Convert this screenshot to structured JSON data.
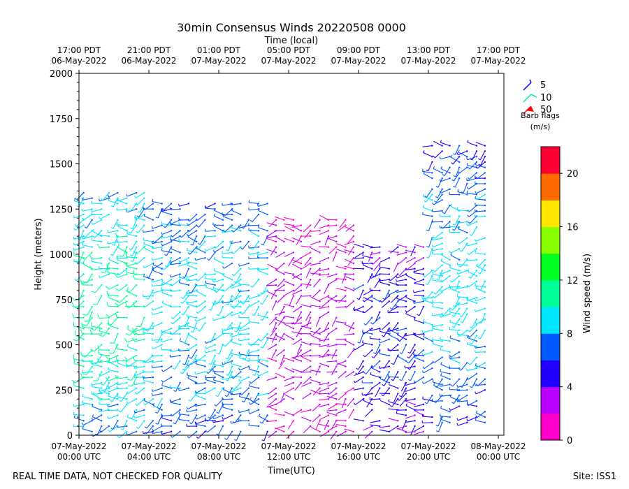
{
  "chart_data": {
    "type": "wind-barb profile",
    "title": "30min Consensus Winds 20220508 0000",
    "top_axis_label": "Time (local)",
    "top_ticks": [
      {
        "h": 0,
        "line1": "17:00 PDT",
        "line2": "06-May-2022"
      },
      {
        "h": 4,
        "line1": "21:00 PDT",
        "line2": "06-May-2022"
      },
      {
        "h": 8,
        "line1": "01:00 PDT",
        "line2": "07-May-2022"
      },
      {
        "h": 12,
        "line1": "05:00 PDT",
        "line2": "07-May-2022"
      },
      {
        "h": 16,
        "line1": "09:00 PDT",
        "line2": "07-May-2022"
      },
      {
        "h": 20,
        "line1": "13:00 PDT",
        "line2": "07-May-2022"
      },
      {
        "h": 24,
        "line1": "17:00 PDT",
        "line2": "07-May-2022"
      }
    ],
    "bottom_ticks": [
      {
        "h": 0,
        "line1": "07-May-2022",
        "line2": "00:00 UTC"
      },
      {
        "h": 4,
        "line1": "07-May-2022",
        "line2": "04:00 UTC"
      },
      {
        "h": 8,
        "line1": "07-May-2022",
        "line2": "08:00 UTC"
      },
      {
        "h": 12,
        "line1": "07-May-2022",
        "line2": "12:00 UTC"
      },
      {
        "h": 16,
        "line1": "07-May-2022",
        "line2": "16:00 UTC"
      },
      {
        "h": 20,
        "line1": "07-May-2022",
        "line2": "20:00 UTC"
      },
      {
        "h": 24,
        "line1": "08-May-2022",
        "line2": "00:00 UTC"
      }
    ],
    "xlabel": "Time(UTC)",
    "ylabel": "Height (meters)",
    "xlim_hours": [
      0,
      24.3
    ],
    "ylim": [
      0,
      2000
    ],
    "y_ticks": [
      0,
      250,
      500,
      750,
      1000,
      1250,
      1500,
      1750,
      2000
    ],
    "y_tick_labels": [
      "0",
      "250",
      "500",
      "750",
      "1000",
      "1250",
      "1500",
      "1750",
      "2000"
    ],
    "legend": {
      "title": "Barb flags",
      "subtitle": "(m/s)",
      "entries": [
        {
          "label": "5",
          "color": "#0000ff"
        },
        {
          "label": "10",
          "color": "#00ee99"
        },
        {
          "label": "50",
          "color": "#ff0000"
        }
      ]
    },
    "colorbar": {
      "label": "Wind speed (m/s)",
      "range": [
        0,
        22
      ],
      "tick_values": [
        0,
        4,
        8,
        12,
        16,
        20
      ],
      "tick_labels": [
        "0",
        "4",
        "8",
        "12",
        "16",
        "20"
      ],
      "colors": [
        "#ff00cc",
        "#bb00ff",
        "#2200ff",
        "#005aff",
        "#00e5ff",
        "#00ff99",
        "#00ff22",
        "#88ff00",
        "#ffe600",
        "#ff6a00",
        "#ff0033"
      ]
    },
    "series_summary": {
      "time_step_hours": 0.5,
      "gate_spacing_m": 30,
      "speed_regimes": [
        {
          "t_start": 0.0,
          "t_end": 4.0,
          "h_min": 0,
          "h_max": 1350,
          "speed_low": 4,
          "speed_high": 11
        },
        {
          "t_start": 4.0,
          "t_end": 11.0,
          "h_min": 0,
          "h_max": 1300,
          "speed_low": 3,
          "speed_high": 9
        },
        {
          "t_start": 11.0,
          "t_end": 16.0,
          "h_min": 0,
          "h_max": 1200,
          "speed_low": 0,
          "speed_high": 3
        },
        {
          "t_start": 16.0,
          "t_end": 20.0,
          "h_min": 0,
          "h_max": 1050,
          "speed_low": 1,
          "speed_high": 6
        },
        {
          "t_start": 20.0,
          "t_end": 23.5,
          "h_min": 50,
          "h_max": 1600,
          "speed_low": 2,
          "speed_high": 9
        }
      ]
    }
  },
  "footer": {
    "left": "REAL TIME DATA, NOT CHECKED FOR QUALITY",
    "right": "Site: ISS1"
  }
}
